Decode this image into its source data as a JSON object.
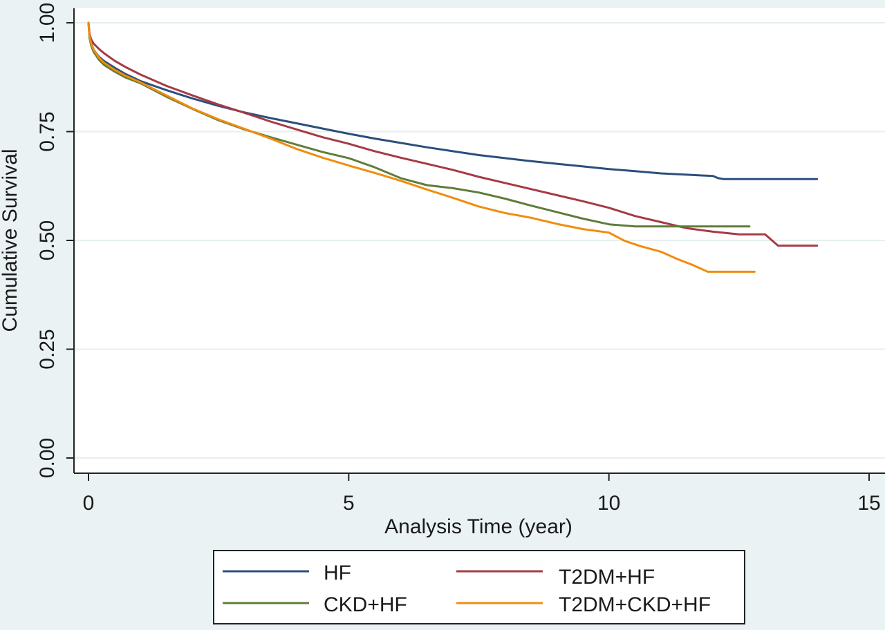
{
  "chart_data": {
    "type": "line",
    "title": "",
    "xlabel": "Analysis Time (year)",
    "ylabel": "Cumulative Survival",
    "xlim": [
      0,
      15
    ],
    "ylim": [
      0,
      1
    ],
    "x_ticks": [
      0,
      5,
      10,
      15
    ],
    "y_ticks": [
      0,
      0.25,
      0.5,
      0.75,
      1
    ],
    "x_tick_labels": [
      "0",
      "5",
      "10",
      "15"
    ],
    "y_tick_labels": [
      "0.00",
      "0.25",
      "0.50",
      "0.75",
      "1.00"
    ],
    "grid": "horizontal",
    "legend_position": "bottom",
    "colors": {
      "background": "#eaf2f3",
      "plot_background": "#ffffff",
      "gridline": "#e6efee"
    },
    "series": [
      {
        "name": "HF",
        "color": "#2b4f7b",
        "x": [
          0,
          0.02,
          0.05,
          0.1,
          0.2,
          0.3,
          0.5,
          0.7,
          1.0,
          1.5,
          2.0,
          2.5,
          3.0,
          3.5,
          4.0,
          4.5,
          5.0,
          5.5,
          6.0,
          6.5,
          7.0,
          7.5,
          8.0,
          8.5,
          9.0,
          9.5,
          10.0,
          10.5,
          11.0,
          11.5,
          12.0,
          12.1,
          12.2,
          13.0,
          14.0
        ],
        "y": [
          1.0,
          0.97,
          0.953,
          0.938,
          0.922,
          0.912,
          0.897,
          0.883,
          0.866,
          0.845,
          0.826,
          0.809,
          0.794,
          0.781,
          0.769,
          0.757,
          0.745,
          0.734,
          0.724,
          0.714,
          0.705,
          0.696,
          0.689,
          0.682,
          0.676,
          0.67,
          0.664,
          0.659,
          0.654,
          0.651,
          0.648,
          0.643,
          0.641,
          0.641,
          0.641
        ]
      },
      {
        "name": "T2DM+HF",
        "color": "#a63a45",
        "x": [
          0,
          0.02,
          0.05,
          0.1,
          0.2,
          0.3,
          0.5,
          0.7,
          1.0,
          1.5,
          2.0,
          2.5,
          3.0,
          3.5,
          4.0,
          4.5,
          5.0,
          5.5,
          6.0,
          6.5,
          7.0,
          7.5,
          8.0,
          8.5,
          9.0,
          9.5,
          10.0,
          10.5,
          11.0,
          11.5,
          12.0,
          12.5,
          13.0,
          13.25,
          14.0
        ],
        "y": [
          1.0,
          0.975,
          0.962,
          0.952,
          0.94,
          0.93,
          0.913,
          0.899,
          0.881,
          0.855,
          0.833,
          0.812,
          0.793,
          0.773,
          0.755,
          0.737,
          0.722,
          0.705,
          0.69,
          0.676,
          0.662,
          0.646,
          0.632,
          0.618,
          0.604,
          0.59,
          0.575,
          0.556,
          0.542,
          0.528,
          0.52,
          0.514,
          0.514,
          0.488,
          0.488
        ]
      },
      {
        "name": "CKD+HF",
        "color": "#5f7d3a",
        "x": [
          0,
          0.02,
          0.05,
          0.1,
          0.2,
          0.3,
          0.5,
          0.7,
          1.0,
          1.5,
          2.0,
          2.5,
          3.0,
          3.5,
          4.0,
          4.5,
          5.0,
          5.5,
          6.0,
          6.5,
          7.0,
          7.5,
          8.0,
          8.5,
          9.0,
          9.5,
          10.0,
          10.5,
          11.0,
          11.5,
          12.0,
          12.7
        ],
        "y": [
          1.0,
          0.965,
          0.948,
          0.933,
          0.915,
          0.903,
          0.888,
          0.875,
          0.861,
          0.83,
          0.802,
          0.776,
          0.755,
          0.737,
          0.72,
          0.703,
          0.689,
          0.668,
          0.643,
          0.627,
          0.62,
          0.61,
          0.596,
          0.58,
          0.565,
          0.55,
          0.537,
          0.532,
          0.532,
          0.532,
          0.532,
          0.532
        ]
      },
      {
        "name": "T2DM+CKD+HF",
        "color": "#f08c0e",
        "x": [
          0,
          0.02,
          0.05,
          0.1,
          0.2,
          0.3,
          0.5,
          0.7,
          1.0,
          1.5,
          2.0,
          2.5,
          3.0,
          3.5,
          4.0,
          4.5,
          5.0,
          5.5,
          6.0,
          6.5,
          7.0,
          7.5,
          8.0,
          8.5,
          9.0,
          9.5,
          10.0,
          10.3,
          10.6,
          11.0,
          11.3,
          11.6,
          11.9,
          12.2,
          12.8
        ],
        "y": [
          1.0,
          0.97,
          0.952,
          0.938,
          0.92,
          0.908,
          0.892,
          0.879,
          0.863,
          0.833,
          0.803,
          0.778,
          0.756,
          0.734,
          0.71,
          0.69,
          0.672,
          0.655,
          0.637,
          0.617,
          0.598,
          0.578,
          0.563,
          0.552,
          0.538,
          0.526,
          0.518,
          0.499,
          0.487,
          0.474,
          0.458,
          0.444,
          0.428,
          0.428,
          0.428
        ]
      }
    ]
  }
}
